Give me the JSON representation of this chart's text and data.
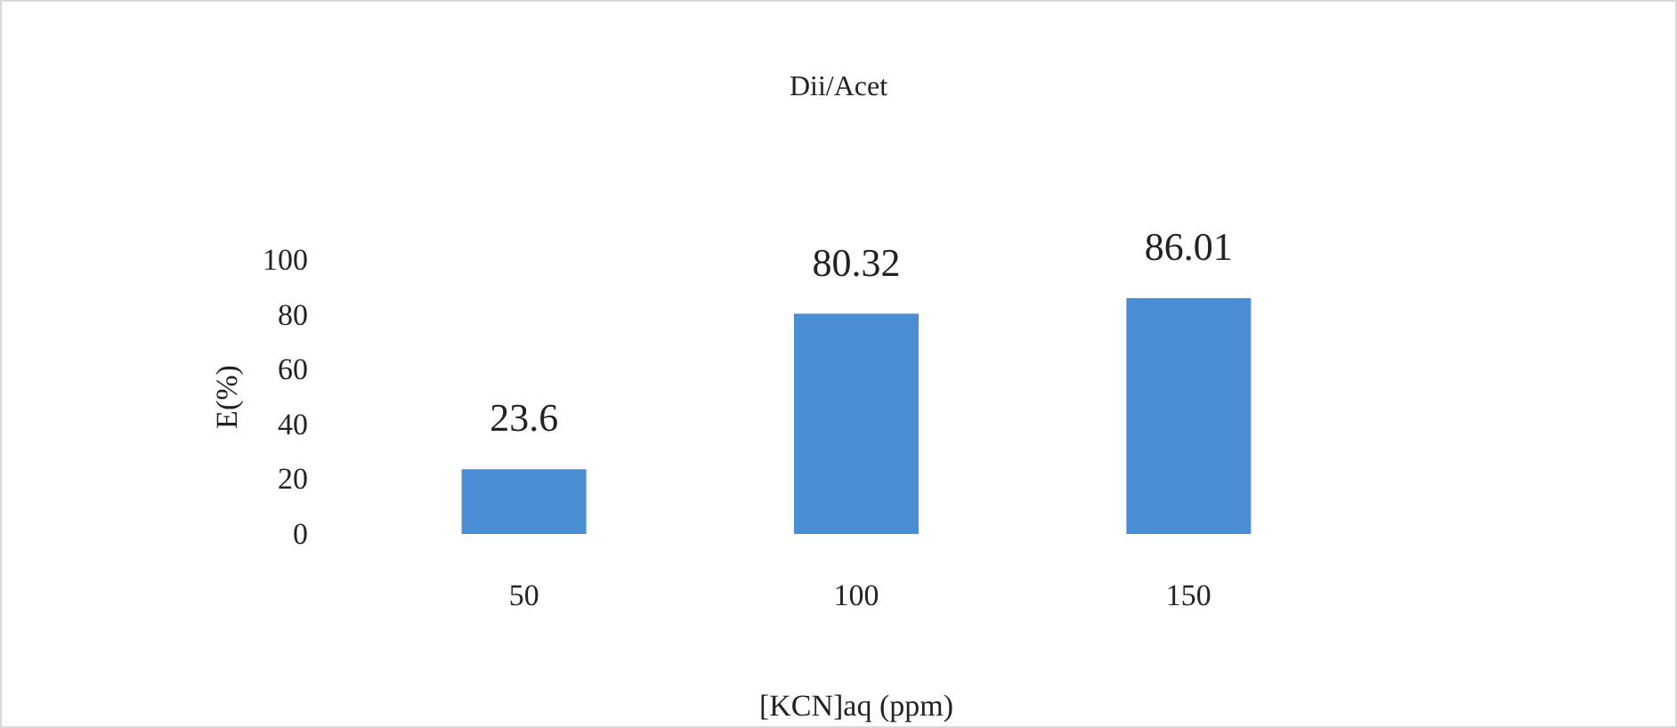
{
  "chart_data": {
    "type": "bar",
    "title": "Dii/Acet",
    "xlabel": "[KCN]aq (ppm)",
    "ylabel": "E(%)",
    "categories": [
      "50",
      "100",
      "150"
    ],
    "values": [
      23.6,
      80.32,
      86.01
    ],
    "color": "#4a8fd6",
    "ylim": [
      0,
      100
    ],
    "yticks": [
      0,
      20,
      40,
      60,
      80,
      100
    ],
    "grid": false,
    "data_labels": true
  }
}
